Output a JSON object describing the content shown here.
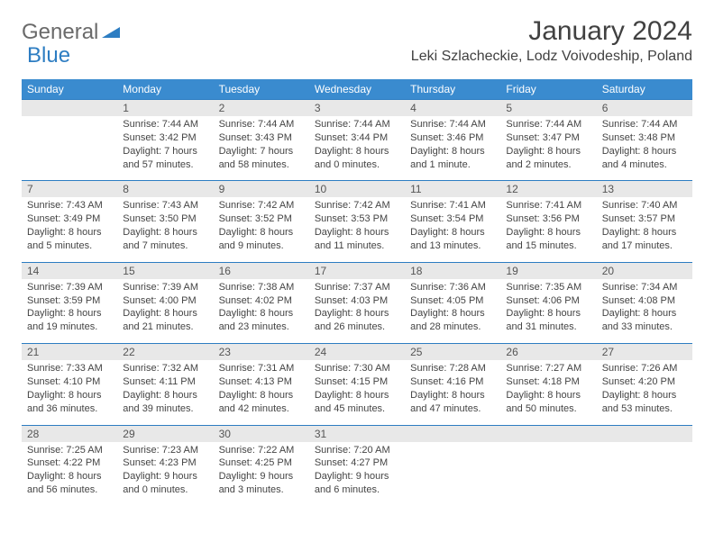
{
  "logo": {
    "textGray": "General",
    "textBlue": "Blue"
  },
  "title": "January 2024",
  "location": "Leki Szlacheckie, Lodz Voivodeship, Poland",
  "colors": {
    "headerBg": "#3a8bcf",
    "headerText": "#ffffff",
    "numRowBg": "#e8e8e8",
    "accentBorder": "#2d7dc2",
    "bodyText": "#444444",
    "titleText": "#414141"
  },
  "dayNames": [
    "Sunday",
    "Monday",
    "Tuesday",
    "Wednesday",
    "Thursday",
    "Friday",
    "Saturday"
  ],
  "weeks": [
    {
      "nums": [
        "",
        "1",
        "2",
        "3",
        "4",
        "5",
        "6"
      ],
      "cells": [
        [],
        [
          "Sunrise: 7:44 AM",
          "Sunset: 3:42 PM",
          "Daylight: 7 hours",
          "and 57 minutes."
        ],
        [
          "Sunrise: 7:44 AM",
          "Sunset: 3:43 PM",
          "Daylight: 7 hours",
          "and 58 minutes."
        ],
        [
          "Sunrise: 7:44 AM",
          "Sunset: 3:44 PM",
          "Daylight: 8 hours",
          "and 0 minutes."
        ],
        [
          "Sunrise: 7:44 AM",
          "Sunset: 3:46 PM",
          "Daylight: 8 hours",
          "and 1 minute."
        ],
        [
          "Sunrise: 7:44 AM",
          "Sunset: 3:47 PM",
          "Daylight: 8 hours",
          "and 2 minutes."
        ],
        [
          "Sunrise: 7:44 AM",
          "Sunset: 3:48 PM",
          "Daylight: 8 hours",
          "and 4 minutes."
        ]
      ]
    },
    {
      "nums": [
        "7",
        "8",
        "9",
        "10",
        "11",
        "12",
        "13"
      ],
      "cells": [
        [
          "Sunrise: 7:43 AM",
          "Sunset: 3:49 PM",
          "Daylight: 8 hours",
          "and 5 minutes."
        ],
        [
          "Sunrise: 7:43 AM",
          "Sunset: 3:50 PM",
          "Daylight: 8 hours",
          "and 7 minutes."
        ],
        [
          "Sunrise: 7:42 AM",
          "Sunset: 3:52 PM",
          "Daylight: 8 hours",
          "and 9 minutes."
        ],
        [
          "Sunrise: 7:42 AM",
          "Sunset: 3:53 PM",
          "Daylight: 8 hours",
          "and 11 minutes."
        ],
        [
          "Sunrise: 7:41 AM",
          "Sunset: 3:54 PM",
          "Daylight: 8 hours",
          "and 13 minutes."
        ],
        [
          "Sunrise: 7:41 AM",
          "Sunset: 3:56 PM",
          "Daylight: 8 hours",
          "and 15 minutes."
        ],
        [
          "Sunrise: 7:40 AM",
          "Sunset: 3:57 PM",
          "Daylight: 8 hours",
          "and 17 minutes."
        ]
      ]
    },
    {
      "nums": [
        "14",
        "15",
        "16",
        "17",
        "18",
        "19",
        "20"
      ],
      "cells": [
        [
          "Sunrise: 7:39 AM",
          "Sunset: 3:59 PM",
          "Daylight: 8 hours",
          "and 19 minutes."
        ],
        [
          "Sunrise: 7:39 AM",
          "Sunset: 4:00 PM",
          "Daylight: 8 hours",
          "and 21 minutes."
        ],
        [
          "Sunrise: 7:38 AM",
          "Sunset: 4:02 PM",
          "Daylight: 8 hours",
          "and 23 minutes."
        ],
        [
          "Sunrise: 7:37 AM",
          "Sunset: 4:03 PM",
          "Daylight: 8 hours",
          "and 26 minutes."
        ],
        [
          "Sunrise: 7:36 AM",
          "Sunset: 4:05 PM",
          "Daylight: 8 hours",
          "and 28 minutes."
        ],
        [
          "Sunrise: 7:35 AM",
          "Sunset: 4:06 PM",
          "Daylight: 8 hours",
          "and 31 minutes."
        ],
        [
          "Sunrise: 7:34 AM",
          "Sunset: 4:08 PM",
          "Daylight: 8 hours",
          "and 33 minutes."
        ]
      ]
    },
    {
      "nums": [
        "21",
        "22",
        "23",
        "24",
        "25",
        "26",
        "27"
      ],
      "cells": [
        [
          "Sunrise: 7:33 AM",
          "Sunset: 4:10 PM",
          "Daylight: 8 hours",
          "and 36 minutes."
        ],
        [
          "Sunrise: 7:32 AM",
          "Sunset: 4:11 PM",
          "Daylight: 8 hours",
          "and 39 minutes."
        ],
        [
          "Sunrise: 7:31 AM",
          "Sunset: 4:13 PM",
          "Daylight: 8 hours",
          "and 42 minutes."
        ],
        [
          "Sunrise: 7:30 AM",
          "Sunset: 4:15 PM",
          "Daylight: 8 hours",
          "and 45 minutes."
        ],
        [
          "Sunrise: 7:28 AM",
          "Sunset: 4:16 PM",
          "Daylight: 8 hours",
          "and 47 minutes."
        ],
        [
          "Sunrise: 7:27 AM",
          "Sunset: 4:18 PM",
          "Daylight: 8 hours",
          "and 50 minutes."
        ],
        [
          "Sunrise: 7:26 AM",
          "Sunset: 4:20 PM",
          "Daylight: 8 hours",
          "and 53 minutes."
        ]
      ]
    },
    {
      "nums": [
        "28",
        "29",
        "30",
        "31",
        "",
        "",
        ""
      ],
      "cells": [
        [
          "Sunrise: 7:25 AM",
          "Sunset: 4:22 PM",
          "Daylight: 8 hours",
          "and 56 minutes."
        ],
        [
          "Sunrise: 7:23 AM",
          "Sunset: 4:23 PM",
          "Daylight: 9 hours",
          "and 0 minutes."
        ],
        [
          "Sunrise: 7:22 AM",
          "Sunset: 4:25 PM",
          "Daylight: 9 hours",
          "and 3 minutes."
        ],
        [
          "Sunrise: 7:20 AM",
          "Sunset: 4:27 PM",
          "Daylight: 9 hours",
          "and 6 minutes."
        ],
        [],
        [],
        []
      ]
    }
  ]
}
